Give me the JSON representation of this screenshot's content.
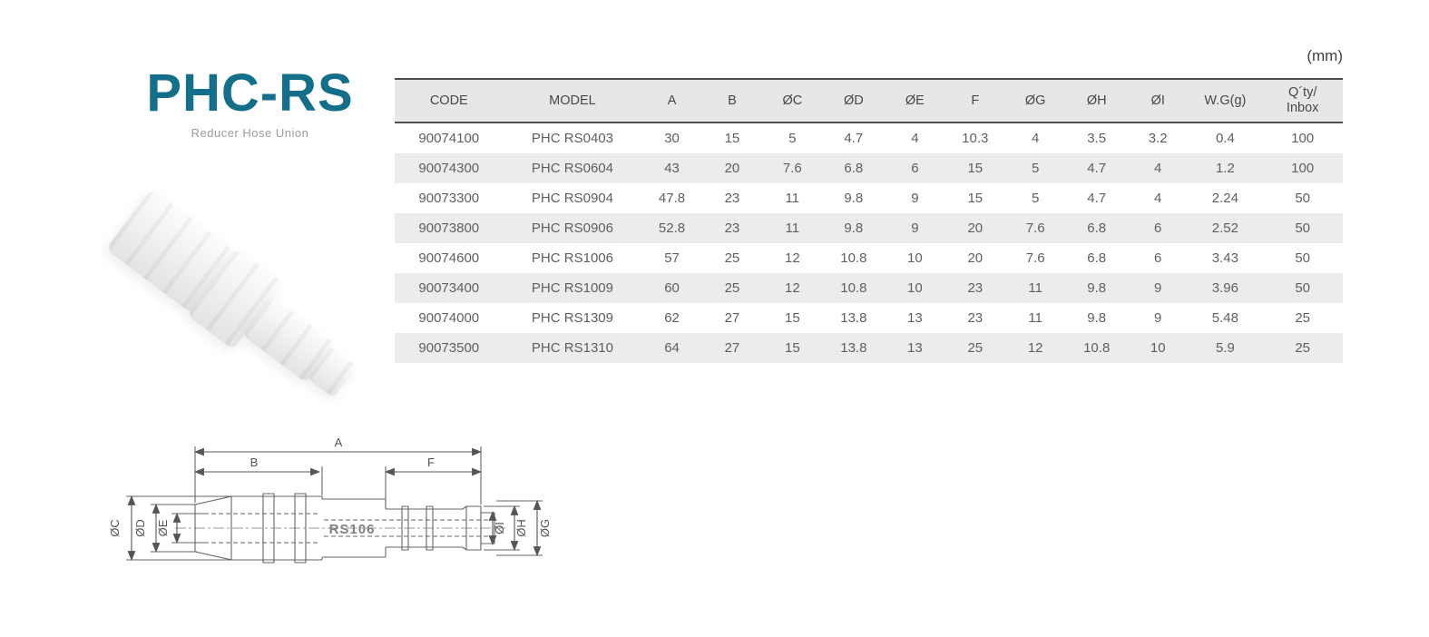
{
  "page": {
    "unit_label": "(mm)",
    "accent_color": "#14708a",
    "alt_row_color": "#ececec",
    "header_bg_color": "#e7e7e7"
  },
  "product": {
    "series": "PHC-RS",
    "description": "Reducer Hose Union"
  },
  "spec_table": {
    "columns": [
      "CODE",
      "MODEL",
      "A",
      "B",
      "ØC",
      "ØD",
      "ØE",
      "F",
      "ØG",
      "ØH",
      "ØI",
      "W.G(g)",
      "Q´ty/\nInbox"
    ],
    "rows": [
      [
        "90074100",
        "PHC RS0403",
        "30",
        "15",
        "5",
        "4.7",
        "4",
        "10.3",
        "4",
        "3.5",
        "3.2",
        "0.4",
        "100"
      ],
      [
        "90074300",
        "PHC RS0604",
        "43",
        "20",
        "7.6",
        "6.8",
        "6",
        "15",
        "5",
        "4.7",
        "4",
        "1.2",
        "100"
      ],
      [
        "90073300",
        "PHC RS0904",
        "47.8",
        "23",
        "11",
        "9.8",
        "9",
        "15",
        "5",
        "4.7",
        "4",
        "2.24",
        "50"
      ],
      [
        "90073800",
        "PHC RS0906",
        "52.8",
        "23",
        "11",
        "9.8",
        "9",
        "20",
        "7.6",
        "6.8",
        "6",
        "2.52",
        "50"
      ],
      [
        "90074600",
        "PHC RS1006",
        "57",
        "25",
        "12",
        "10.8",
        "10",
        "20",
        "7.6",
        "6.8",
        "6",
        "3.43",
        "50"
      ],
      [
        "90073400",
        "PHC RS1009",
        "60",
        "25",
        "12",
        "10.8",
        "10",
        "23",
        "11",
        "9.8",
        "9",
        "3.96",
        "50"
      ],
      [
        "90074000",
        "PHC RS1309",
        "62",
        "27",
        "15",
        "13.8",
        "13",
        "23",
        "11",
        "9.8",
        "9",
        "5.48",
        "25"
      ],
      [
        "90073500",
        "PHC RS1310",
        "64",
        "27",
        "15",
        "13.8",
        "13",
        "25",
        "12",
        "10.8",
        "10",
        "5.9",
        "25"
      ]
    ]
  },
  "diagram": {
    "part_marking": "RS106",
    "labels": {
      "A": "A",
      "B": "B",
      "F": "F",
      "C": "ØC",
      "D": "ØD",
      "E": "ØE",
      "G": "ØG",
      "H": "ØH",
      "I": "ØI"
    }
  }
}
